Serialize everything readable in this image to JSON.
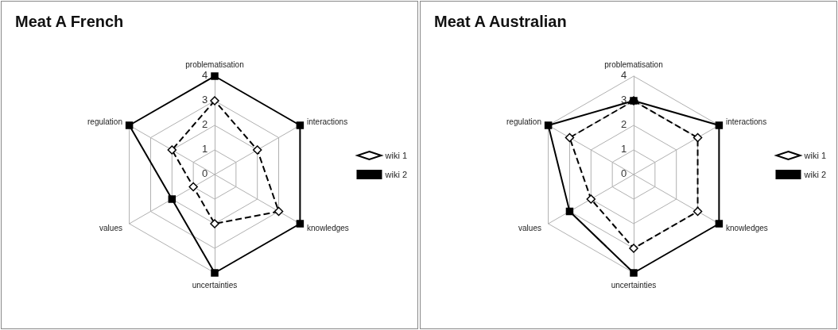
{
  "chart_data": [
    {
      "type": "radar",
      "title": "Meat A French",
      "categories": [
        "problematisation",
        "interactions",
        "knowledges",
        "uncertainties",
        "values",
        "regulation"
      ],
      "ylim": [
        0,
        4
      ],
      "yticks": [
        0,
        1,
        2,
        3,
        4
      ],
      "grid": true,
      "legend": "right",
      "series": [
        {
          "name": "wiki 1",
          "color": "#000000",
          "values": [
            3,
            2,
            3,
            2,
            1,
            2
          ],
          "marker": "diamond",
          "line_style": "dashed"
        },
        {
          "name": "wiki 2",
          "color": "#000000",
          "values": [
            4,
            4,
            4,
            4,
            2,
            4
          ],
          "marker": "square",
          "line_style": "solid"
        }
      ]
    },
    {
      "type": "radar",
      "title": "Meat A Australian",
      "categories": [
        "problematisation",
        "interactions",
        "knowledges",
        "uncertainties",
        "values",
        "regulation"
      ],
      "ylim": [
        0,
        4
      ],
      "yticks": [
        0,
        1,
        2,
        3,
        4
      ],
      "grid": true,
      "legend": "right",
      "series": [
        {
          "name": "wiki 1",
          "color": "#000000",
          "values": [
            3,
            3,
            3,
            3,
            2,
            3
          ],
          "marker": "diamond",
          "line_style": "dashed"
        },
        {
          "name": "wiki 2",
          "color": "#000000",
          "values": [
            3,
            4,
            4,
            4,
            3,
            4
          ],
          "marker": "square",
          "line_style": "solid"
        }
      ]
    }
  ]
}
